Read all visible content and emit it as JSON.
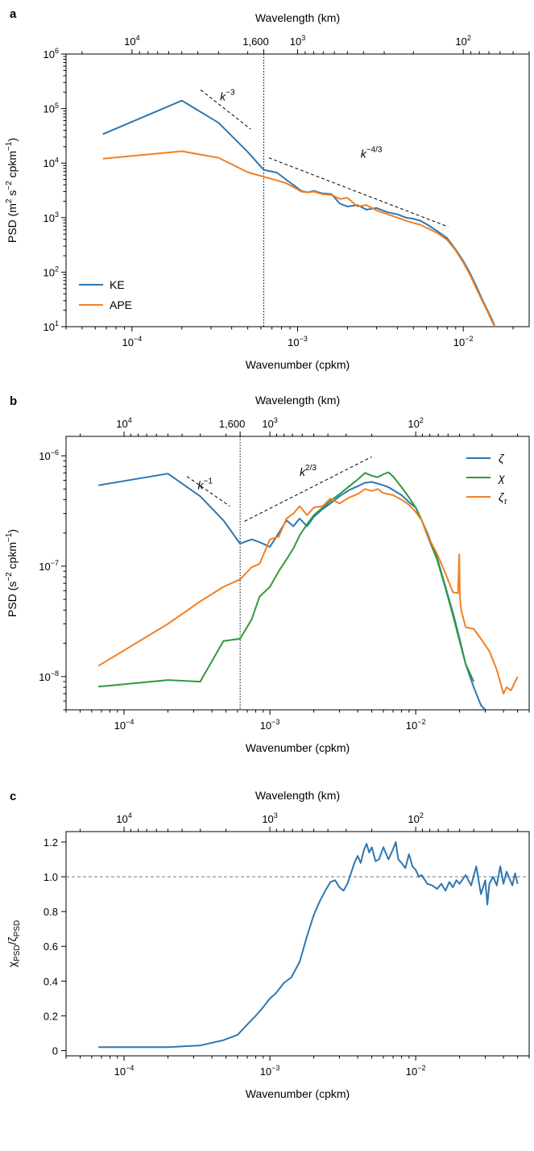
{
  "colors": {
    "blue": "#2e77b1",
    "orange": "#f47f20",
    "green": "#2f9a3a",
    "black": "#000000",
    "gray": "#777777"
  },
  "chart_data": [
    {
      "panel": "a",
      "type": "line",
      "xscale": "log",
      "yscale": "log",
      "xlabel": "Wavenumber (cpkm)",
      "ylabel_parts": [
        "PSD (m",
        "2",
        " s",
        "−2",
        " cpkm",
        "−1",
        ")"
      ],
      "top_xlabel": "Wavelength (km)",
      "xlim": [
        4e-05,
        0.025
      ],
      "ylim": [
        10,
        1000000
      ],
      "x_ticks": [
        {
          "value": 0.0001,
          "base": "10",
          "exp": "−4"
        },
        {
          "value": 0.001,
          "base": "10",
          "exp": "−3"
        },
        {
          "value": 0.01,
          "base": "10",
          "exp": "−2"
        }
      ],
      "y_ticks": [
        {
          "value": 10,
          "base": "10",
          "exp": "1"
        },
        {
          "value": 100,
          "base": "10",
          "exp": "2"
        },
        {
          "value": 1000,
          "base": "10",
          "exp": "3"
        },
        {
          "value": 10000,
          "base": "10",
          "exp": "4"
        },
        {
          "value": 100000,
          "base": "10",
          "exp": "5"
        },
        {
          "value": 1000000,
          "base": "10",
          "exp": "6"
        }
      ],
      "top_ticks": [
        {
          "wavelength": 10000,
          "base": "10",
          "exp": "4"
        },
        {
          "wavelength": 1000,
          "base": "10",
          "exp": "3"
        },
        {
          "wavelength": 100,
          "base": "10",
          "exp": "2"
        }
      ],
      "top_extra_tick": {
        "wavelength": 1600,
        "label": "1,600"
      },
      "vline_x": 0.000625,
      "legend": "lower-left",
      "series": [
        {
          "name": "KE",
          "color": "blue",
          "x": [
            6.67e-05,
            0.0002,
            0.000333,
            0.0005,
            0.000625,
            0.00075,
            0.00085,
            0.00095,
            0.00105,
            0.00115,
            0.00125,
            0.0014,
            0.0016,
            0.0018,
            0.002,
            0.0023,
            0.0026,
            0.003,
            0.0035,
            0.004,
            0.0045,
            0.005,
            0.0055,
            0.006,
            0.007,
            0.008,
            0.009,
            0.01,
            0.011,
            0.012,
            0.013,
            0.014,
            0.015,
            0.0155
          ],
          "y": [
            34000,
            140000,
            55000,
            16000,
            7500,
            6700,
            5000,
            3900,
            3100,
            2900,
            3100,
            2800,
            2700,
            1800,
            1600,
            1700,
            1400,
            1500,
            1250,
            1150,
            1000,
            950,
            880,
            760,
            560,
            420,
            260,
            160,
            95,
            55,
            32,
            20,
            13,
            10
          ]
        },
        {
          "name": "APE",
          "color": "orange",
          "x": [
            6.67e-05,
            0.0002,
            0.000333,
            0.0005,
            0.000625,
            0.00075,
            0.00085,
            0.00095,
            0.00105,
            0.00115,
            0.00125,
            0.0014,
            0.0016,
            0.0018,
            0.002,
            0.0023,
            0.0026,
            0.003,
            0.0035,
            0.004,
            0.0045,
            0.005,
            0.0055,
            0.006,
            0.007,
            0.008,
            0.009,
            0.01,
            0.011,
            0.012,
            0.013,
            0.014,
            0.015,
            0.0155
          ],
          "y": [
            12000,
            16500,
            12500,
            6800,
            5600,
            4800,
            4300,
            3600,
            3000,
            2900,
            3000,
            2700,
            2600,
            2200,
            2300,
            1600,
            1700,
            1350,
            1150,
            1000,
            880,
            800,
            740,
            650,
            520,
            390,
            250,
            150,
            88,
            50,
            30,
            19,
            12,
            10
          ]
        }
      ],
      "slope_guides": [
        {
          "label_base": "k",
          "label_exp": "−3",
          "x": [
            0.00026,
            0.00052
          ],
          "y": [
            220000,
            42000
          ],
          "label_x": 0.00034,
          "label_y": 140000
        },
        {
          "label_base": "k",
          "label_exp": "−4/3",
          "x": [
            0.00067,
            0.0081
          ],
          "y": [
            12500,
            680
          ],
          "label_x": 0.0024,
          "label_y": 12500
        }
      ]
    },
    {
      "panel": "b",
      "type": "line",
      "xscale": "log",
      "yscale": "log",
      "xlabel": "Wavenumber (cpkm)",
      "ylabel_parts": [
        "PSD (s",
        "−2",
        " cpkm",
        "−1",
        ")"
      ],
      "top_xlabel": "Wavelength (km)",
      "xlim": [
        4e-05,
        0.06
      ],
      "ylim": [
        5e-09,
        1.5e-06
      ],
      "x_ticks": [
        {
          "value": 0.0001,
          "base": "10",
          "exp": "−4"
        },
        {
          "value": 0.001,
          "base": "10",
          "exp": "−3"
        },
        {
          "value": 0.01,
          "base": "10",
          "exp": "−2"
        }
      ],
      "y_ticks": [
        {
          "value": 1e-08,
          "base": "10",
          "exp": "−8"
        },
        {
          "value": 1e-07,
          "base": "10",
          "exp": "−7"
        },
        {
          "value": 1e-06,
          "base": "10",
          "exp": "−6"
        }
      ],
      "top_ticks": [
        {
          "wavelength": 10000,
          "base": "10",
          "exp": "4"
        },
        {
          "wavelength": 1000,
          "base": "10",
          "exp": "3"
        },
        {
          "wavelength": 100,
          "base": "10",
          "exp": "2"
        }
      ],
      "top_extra_tick": {
        "wavelength": 1600,
        "label": "1,600"
      },
      "vline_x": 0.000625,
      "legend": "top-right",
      "series": [
        {
          "name": "ζ",
          "color": "blue",
          "x": [
            6.67e-05,
            0.0002,
            0.000333,
            0.00048,
            0.000625,
            0.00075,
            0.00085,
            0.001,
            0.00115,
            0.0013,
            0.00145,
            0.0016,
            0.0018,
            0.002,
            0.0023,
            0.0026,
            0.003,
            0.0035,
            0.004,
            0.0045,
            0.005,
            0.0055,
            0.006,
            0.0065,
            0.007,
            0.008,
            0.009,
            0.01,
            0.011,
            0.012,
            0.014,
            0.016,
            0.018,
            0.02,
            0.022,
            0.025,
            0.028,
            0.03
          ],
          "y": [
            5.4e-07,
            6.9e-07,
            4.3e-07,
            2.6e-07,
            1.6e-07,
            1.75e-07,
            1.65e-07,
            1.5e-07,
            2e-07,
            2.6e-07,
            2.3e-07,
            2.7e-07,
            2.3e-07,
            2.8e-07,
            3.3e-07,
            3.7e-07,
            4.3e-07,
            4.9e-07,
            5.3e-07,
            5.7e-07,
            5.8e-07,
            5.6e-07,
            5.4e-07,
            5.2e-07,
            4.9e-07,
            4.4e-07,
            3.8e-07,
            3.4e-07,
            2.6e-07,
            2e-07,
            1.2e-07,
            6.5e-08,
            3.8e-08,
            2.2e-08,
            1.3e-08,
            8e-09,
            5.5e-09,
            5e-09
          ]
        },
        {
          "name": "χ",
          "color": "green",
          "x": [
            6.67e-05,
            0.0002,
            0.000333,
            0.00048,
            0.000625,
            0.00075,
            0.00085,
            0.001,
            0.00115,
            0.0013,
            0.00145,
            0.0016,
            0.0018,
            0.002,
            0.0023,
            0.0026,
            0.003,
            0.0035,
            0.004,
            0.0045,
            0.005,
            0.0055,
            0.006,
            0.0065,
            0.007,
            0.008,
            0.009,
            0.01,
            0.011,
            0.012,
            0.014,
            0.016,
            0.018,
            0.02,
            0.022,
            0.025
          ],
          "y": [
            8.1e-09,
            9.3e-09,
            9e-09,
            2.1e-08,
            2.2e-08,
            3.3e-08,
            5.3e-08,
            6.5e-08,
            9e-08,
            1.15e-07,
            1.45e-07,
            1.9e-07,
            2.4e-07,
            2.9e-07,
            3.4e-07,
            3.9e-07,
            4.5e-07,
            5.3e-07,
            6.1e-07,
            7e-07,
            6.6e-07,
            6.4e-07,
            6.8e-07,
            7.1e-07,
            6.5e-07,
            5.2e-07,
            4.2e-07,
            3.4e-07,
            2.6e-07,
            1.9e-07,
            1.15e-07,
            6.3e-08,
            3.6e-08,
            2.1e-08,
            1.3e-08,
            9e-09
          ]
        },
        {
          "name": "ζτ",
          "color": "orange",
          "x": [
            6.67e-05,
            0.0002,
            0.000333,
            0.00048,
            0.000625,
            0.00075,
            0.00085,
            0.001,
            0.00115,
            0.0013,
            0.00145,
            0.0016,
            0.0018,
            0.002,
            0.0023,
            0.0026,
            0.003,
            0.0035,
            0.004,
            0.0045,
            0.005,
            0.0055,
            0.006,
            0.007,
            0.008,
            0.009,
            0.01,
            0.011,
            0.012,
            0.014,
            0.016,
            0.018,
            0.0195,
            0.0199,
            0.0201,
            0.0205,
            0.022,
            0.025,
            0.028,
            0.032,
            0.036,
            0.04,
            0.042,
            0.045,
            0.05
          ],
          "y": [
            1.25e-08,
            3e-08,
            4.8e-08,
            6.5e-08,
            7.6e-08,
            9.8e-08,
            1.05e-07,
            1.75e-07,
            1.85e-07,
            2.7e-07,
            3e-07,
            3.5e-07,
            2.9e-07,
            3.4e-07,
            3.5e-07,
            4.1e-07,
            3.7e-07,
            4.2e-07,
            4.5e-07,
            5e-07,
            4.8e-07,
            5e-07,
            4.6e-07,
            4.4e-07,
            4e-07,
            3.6e-07,
            3.1e-07,
            2.6e-07,
            1.9e-07,
            1.3e-07,
            8.6e-08,
            5.8e-08,
            5.7e-08,
            1.28e-07,
            5.2e-08,
            4e-08,
            2.8e-08,
            2.7e-08,
            2.2e-08,
            1.7e-08,
            1.15e-08,
            7e-09,
            8e-09,
            7.5e-09,
            1e-08
          ]
        }
      ],
      "slope_guides": [
        {
          "label_base": "k",
          "label_exp": "−1",
          "x": [
            0.00027,
            0.00053
          ],
          "y": [
            6.5e-07,
            3.5e-07
          ],
          "label_x": 0.00032,
          "label_y": 5e-07
        },
        {
          "label_base": "k",
          "label_exp": "2/3",
          "x": [
            0.00067,
            0.005
          ],
          "y": [
            2.55e-07,
            9.8e-07
          ],
          "label_x": 0.0016,
          "label_y": 6.6e-07
        }
      ]
    },
    {
      "panel": "c",
      "type": "line",
      "xscale": "log",
      "yscale": "linear",
      "xlabel": "Wavenumber (cpkm)",
      "ylabel_parts": [
        "χ",
        "PSD",
        "/ζ",
        "PSD"
      ],
      "top_xlabel": "Wavelength (km)",
      "xlim": [
        4e-05,
        0.06
      ],
      "ylim": [
        -0.03,
        1.26
      ],
      "x_ticks": [
        {
          "value": 0.0001,
          "base": "10",
          "exp": "−4"
        },
        {
          "value": 0.001,
          "base": "10",
          "exp": "−3"
        },
        {
          "value": 0.01,
          "base": "10",
          "exp": "−2"
        }
      ],
      "y_ticks": [
        {
          "value": 0,
          "label": "0"
        },
        {
          "value": 0.2,
          "label": "0.2"
        },
        {
          "value": 0.4,
          "label": "0.4"
        },
        {
          "value": 0.6,
          "label": "0.6"
        },
        {
          "value": 0.8,
          "label": "0.8"
        },
        {
          "value": 1.0,
          "label": "1.0"
        },
        {
          "value": 1.2,
          "label": "1.2"
        }
      ],
      "top_ticks": [
        {
          "wavelength": 10000,
          "base": "10",
          "exp": "4"
        },
        {
          "wavelength": 1000,
          "base": "10",
          "exp": "3"
        },
        {
          "wavelength": 100,
          "base": "10",
          "exp": "2"
        }
      ],
      "hline_y": 1.0,
      "series": [
        {
          "name": "",
          "color": "blue",
          "x": [
            6.67e-05,
            0.0002,
            0.000333,
            0.00048,
            0.0006,
            0.0007,
            0.0008,
            0.0009,
            0.001,
            0.0011,
            0.00125,
            0.0014,
            0.0016,
            0.0018,
            0.002,
            0.0022,
            0.0024,
            0.0026,
            0.0028,
            0.003,
            0.0032,
            0.0034,
            0.0036,
            0.0038,
            0.004,
            0.0042,
            0.0044,
            0.0046,
            0.0048,
            0.005,
            0.0053,
            0.0056,
            0.006,
            0.0065,
            0.007,
            0.0073,
            0.0076,
            0.008,
            0.0085,
            0.009,
            0.0095,
            0.01,
            0.0105,
            0.011,
            0.012,
            0.013,
            0.014,
            0.015,
            0.016,
            0.017,
            0.018,
            0.019,
            0.02,
            0.022,
            0.024,
            0.026,
            0.028,
            0.03,
            0.031,
            0.032,
            0.034,
            0.036,
            0.038,
            0.04,
            0.042,
            0.044,
            0.046,
            0.048,
            0.05
          ],
          "y": [
            0.02,
            0.02,
            0.03,
            0.06,
            0.09,
            0.15,
            0.2,
            0.25,
            0.3,
            0.33,
            0.39,
            0.42,
            0.51,
            0.66,
            0.78,
            0.86,
            0.92,
            0.97,
            0.98,
            0.94,
            0.92,
            0.96,
            1.02,
            1.08,
            1.12,
            1.08,
            1.15,
            1.19,
            1.14,
            1.17,
            1.09,
            1.1,
            1.17,
            1.1,
            1.16,
            1.2,
            1.1,
            1.08,
            1.05,
            1.13,
            1.06,
            1.04,
            1.0,
            1.01,
            0.96,
            0.95,
            0.93,
            0.96,
            0.92,
            0.97,
            0.94,
            0.98,
            0.96,
            1.01,
            0.95,
            1.06,
            0.9,
            0.98,
            0.84,
            0.96,
            1.0,
            0.95,
            1.06,
            0.96,
            1.03,
            0.99,
            0.95,
            1.02,
            0.96
          ]
        }
      ]
    }
  ],
  "labels": {
    "panel_a": "a",
    "panel_b": "b",
    "panel_c": "c",
    "legend_a": [
      "KE",
      "APE"
    ],
    "legend_b": [
      {
        "base": "ζ",
        "sub": ""
      },
      {
        "base": "χ",
        "sub": ""
      },
      {
        "base": "ζ",
        "sub": "τ"
      }
    ]
  }
}
